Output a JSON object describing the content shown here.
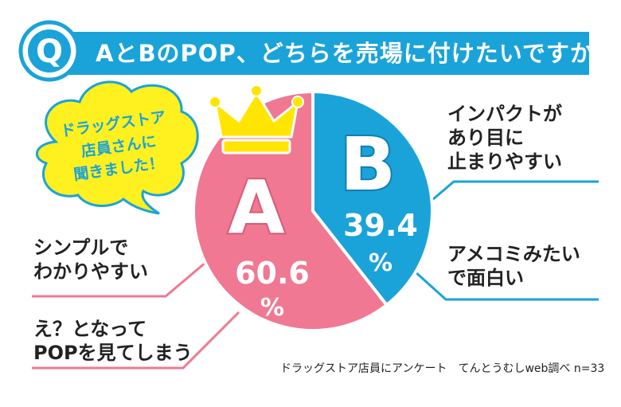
{
  "title": {
    "q_mark": "Q",
    "text": "AとBのPOP、どちらを売場に付けたいですか？"
  },
  "badge": {
    "line1": "ドラッグストア",
    "line2": "店員さんに",
    "line3": "聞きました！"
  },
  "chart_data": {
    "type": "pie",
    "categories": [
      "A",
      "B"
    ],
    "values": [
      60.6,
      39.4
    ],
    "value_labels": [
      "60.6",
      "39.4"
    ],
    "unit": "%",
    "colors": [
      "#f07892",
      "#1aa3d9"
    ]
  },
  "reasons": {
    "b1": [
      "インパクトが",
      "あり目に",
      "止まりやすい"
    ],
    "b2": [
      "アメコミみたい",
      "で面白い"
    ],
    "a1": [
      "シンプルで",
      "わかりやすい"
    ],
    "a2": [
      "え？となって",
      "POPを見てしまう"
    ]
  },
  "footer": "ドラッグストア店員にアンケート　てんとうむしweb調べ n=33",
  "colors": {
    "accent_blue": "#1aa3d9",
    "accent_pink": "#f07892",
    "badge_yellow": "#fff01f",
    "crown_yellow": "#ffe500"
  }
}
